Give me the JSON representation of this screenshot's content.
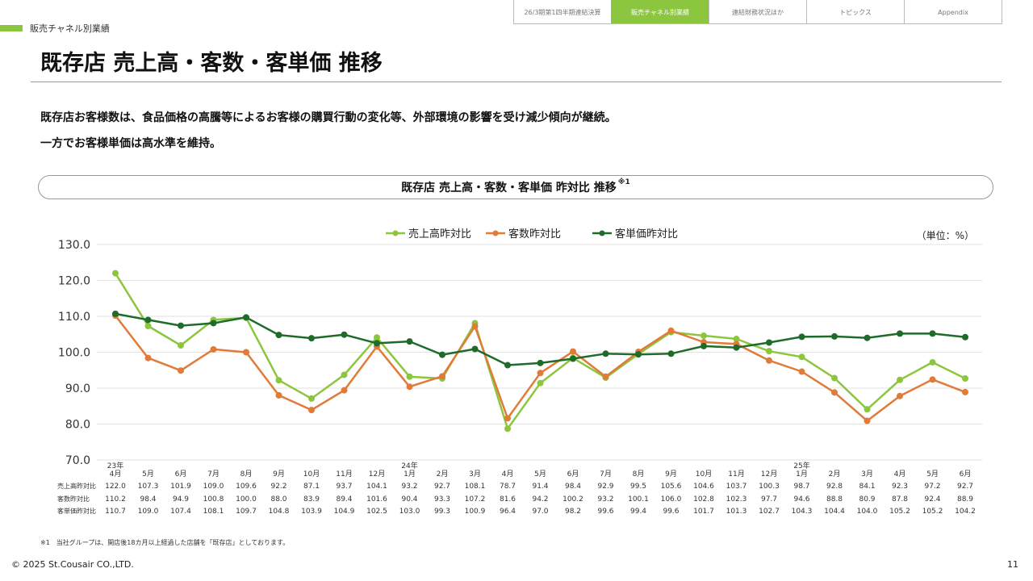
{
  "nav": {
    "tabs": [
      {
        "label": "26/3期第1四半期連結決算",
        "active": false
      },
      {
        "label": "販売チャネル別業績",
        "active": true
      },
      {
        "label": "連結財務状況ほか",
        "active": false
      },
      {
        "label": "トピックス",
        "active": false
      },
      {
        "label": "Appendix",
        "active": false
      }
    ]
  },
  "section_label": "販売チャネル別業績",
  "page_title": "既存店 売上高・客数・客単価 推移",
  "lead": {
    "line1": "既存店お客様数は、食品価格の高騰等によるお客様の購買行動の変化等、外部環境の影響を受け減少傾向が継続。",
    "line2": "一方でお客様単価は高水準を維持。"
  },
  "chart_header": {
    "title": "既存店 売上高・客数・客単価 昨対比 推移",
    "note_mark": "※1"
  },
  "unit_label": "（単位：%）",
  "colors": {
    "accent": "#8cc63f",
    "sales": "#8cc63f",
    "customers": "#e07b39",
    "per_customer": "#1e6b2a"
  },
  "chart_data": {
    "type": "line",
    "ylim": [
      70,
      130
    ],
    "yticks": [
      "70.0",
      "80.0",
      "90.0",
      "100.0",
      "110.0",
      "120.0",
      "130.0"
    ],
    "categories": [
      {
        "year": "23年",
        "month": "4月"
      },
      {
        "year": "",
        "month": "5月"
      },
      {
        "year": "",
        "month": "6月"
      },
      {
        "year": "",
        "month": "7月"
      },
      {
        "year": "",
        "month": "8月"
      },
      {
        "year": "",
        "month": "9月"
      },
      {
        "year": "",
        "month": "10月"
      },
      {
        "year": "",
        "month": "11月"
      },
      {
        "year": "",
        "month": "12月"
      },
      {
        "year": "24年",
        "month": "1月"
      },
      {
        "year": "",
        "month": "2月"
      },
      {
        "year": "",
        "month": "3月"
      },
      {
        "year": "",
        "month": "4月"
      },
      {
        "year": "",
        "month": "5月"
      },
      {
        "year": "",
        "month": "6月"
      },
      {
        "year": "",
        "month": "7月"
      },
      {
        "year": "",
        "month": "8月"
      },
      {
        "year": "",
        "month": "9月"
      },
      {
        "year": "",
        "month": "10月"
      },
      {
        "year": "",
        "month": "11月"
      },
      {
        "year": "",
        "month": "12月"
      },
      {
        "year": "25年",
        "month": "1月"
      },
      {
        "year": "",
        "month": "2月"
      },
      {
        "year": "",
        "month": "3月"
      },
      {
        "year": "",
        "month": "4月"
      },
      {
        "year": "",
        "month": "5月"
      },
      {
        "year": "",
        "month": "6月"
      }
    ],
    "series": [
      {
        "name": "売上高昨対比",
        "table_label": "売上高昨対比",
        "color": "#8cc63f",
        "values": [
          122.0,
          107.3,
          101.9,
          109.0,
          109.6,
          92.2,
          87.1,
          93.7,
          104.1,
          93.2,
          92.7,
          108.1,
          78.7,
          91.4,
          98.4,
          92.9,
          99.5,
          105.6,
          104.6,
          103.7,
          100.3,
          98.7,
          92.8,
          84.1,
          92.3,
          97.2,
          92.7
        ]
      },
      {
        "name": "客数昨対比",
        "table_label": "客数昨対比",
        "color": "#e07b39",
        "values": [
          110.2,
          98.4,
          94.9,
          100.8,
          100.0,
          88.0,
          83.9,
          89.4,
          101.6,
          90.4,
          93.3,
          107.2,
          81.6,
          94.2,
          100.2,
          93.2,
          100.1,
          106.0,
          102.8,
          102.3,
          97.7,
          94.6,
          88.8,
          80.9,
          87.8,
          92.4,
          88.9
        ]
      },
      {
        "name": "客単価昨対比",
        "table_label": "客単価昨対比",
        "color": "#1e6b2a",
        "values": [
          110.7,
          109.0,
          107.4,
          108.1,
          109.7,
          104.8,
          103.9,
          104.9,
          102.5,
          103.0,
          99.3,
          100.9,
          96.4,
          97.0,
          98.2,
          99.6,
          99.4,
          99.6,
          101.7,
          101.3,
          102.7,
          104.3,
          104.4,
          104.0,
          105.2,
          105.2,
          104.2
        ]
      }
    ],
    "legend_position": "top-center",
    "grid": true
  },
  "footnote": "※1　当社グループは、開店後18カ月以上経過した店舗を「既存店」としております。",
  "copyright": "© 2025 St.Cousair CO.,LTD.",
  "page_number": "11"
}
